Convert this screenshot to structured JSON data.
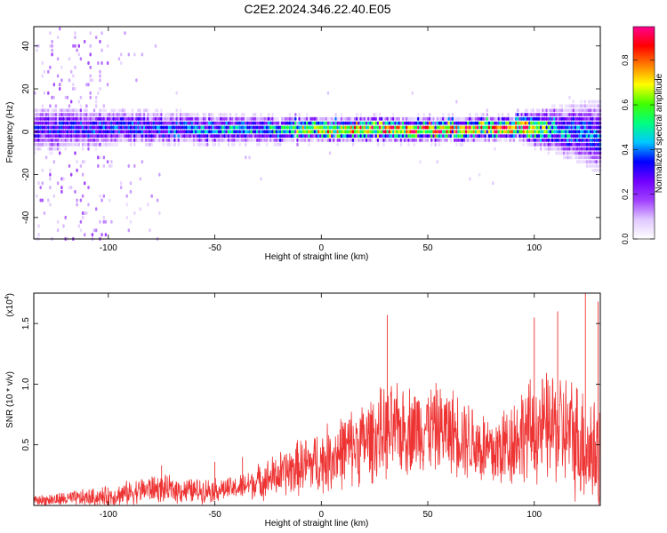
{
  "title": "C2E2.2024.346.22.40.E05",
  "chart_data": [
    {
      "type": "heatmap",
      "title": "C2E2.2024.346.22.40.E05",
      "xlabel": "Height of straight line (km)",
      "ylabel": "Frequency (Hz)",
      "xlim": [
        -135,
        131
      ],
      "ylim": [
        -50,
        49
      ],
      "x_ticks": [
        -100,
        -50,
        0,
        50,
        100
      ],
      "y_ticks": [
        -40,
        -20,
        0,
        20,
        40
      ],
      "colorbar": {
        "label": "Normalized spectral amplitude",
        "range": [
          0.0,
          0.95
        ],
        "ticks": [
          "0.0",
          "0.2",
          "0.4",
          "0.6",
          "0.8"
        ],
        "colors": [
          "#ffffff",
          "#e0c8ff",
          "#a040ff",
          "#7000ff",
          "#0000ff",
          "#00c8ff",
          "#00ff80",
          "#40ff00",
          "#ffff00",
          "#ff8000",
          "#ff0000",
          "#ff0090"
        ]
      },
      "band_center_hz": [
        {
          "x": -135,
          "y": 1
        },
        {
          "x": -100,
          "y": 2
        },
        {
          "x": -50,
          "y": 1
        },
        {
          "x": 0,
          "y": 1
        },
        {
          "x": 50,
          "y": 1
        },
        {
          "x": 100,
          "y": 2
        },
        {
          "x": 131,
          "y": -2
        }
      ],
      "band_halfwidth_hz": [
        {
          "x": -135,
          "y": 8
        },
        {
          "x": -90,
          "y": 6
        },
        {
          "x": -40,
          "y": 5
        },
        {
          "x": 0,
          "y": 4
        },
        {
          "x": 90,
          "y": 4
        },
        {
          "x": 110,
          "y": 8
        },
        {
          "x": 131,
          "y": 13
        }
      ],
      "peak_amplitude": [
        {
          "x": -135,
          "y": 0.35
        },
        {
          "x": -80,
          "y": 0.4
        },
        {
          "x": -20,
          "y": 0.55
        },
        {
          "x": 0,
          "y": 0.85
        },
        {
          "x": 50,
          "y": 0.9
        },
        {
          "x": 95,
          "y": 0.9
        },
        {
          "x": 110,
          "y": 0.5
        },
        {
          "x": 131,
          "y": 0.4
        }
      ]
    },
    {
      "type": "line",
      "xlabel": "Height of straight line (km)",
      "ylabel": "SNR (10 * v/v)",
      "y_multiplier": "(x10",
      "y_multiplier_exp": "4",
      "xlim": [
        -135,
        131
      ],
      "ylim": [
        0,
        17500
      ],
      "x_ticks": [
        -100,
        -50,
        0,
        50,
        100
      ],
      "y_ticks": [
        {
          "value": 5000,
          "label": "0.5"
        },
        {
          "value": 10000,
          "label": "1.0"
        },
        {
          "value": 15000,
          "label": "1.5"
        }
      ],
      "color": "#ee3333",
      "series": [
        {
          "envelope_mean": [
            {
              "x": -135,
              "y": 400
            },
            {
              "x": -100,
              "y": 700
            },
            {
              "x": -80,
              "y": 1400
            },
            {
              "x": -60,
              "y": 1200
            },
            {
              "x": -40,
              "y": 1400
            },
            {
              "x": -20,
              "y": 2500
            },
            {
              "x": -10,
              "y": 3200
            },
            {
              "x": 0,
              "y": 3600
            },
            {
              "x": 10,
              "y": 4500
            },
            {
              "x": 30,
              "y": 6000
            },
            {
              "x": 50,
              "y": 6500
            },
            {
              "x": 65,
              "y": 6000
            },
            {
              "x": 80,
              "y": 4200
            },
            {
              "x": 95,
              "y": 6000
            },
            {
              "x": 110,
              "y": 6500
            },
            {
              "x": 120,
              "y": 5500
            },
            {
              "x": 131,
              "y": 4000
            }
          ],
          "envelope_amplitude": [
            {
              "x": -135,
              "y": 400
            },
            {
              "x": -80,
              "y": 1100
            },
            {
              "x": -40,
              "y": 900
            },
            {
              "x": -20,
              "y": 1800
            },
            {
              "x": 0,
              "y": 2600
            },
            {
              "x": 30,
              "y": 3600
            },
            {
              "x": 80,
              "y": 3200
            },
            {
              "x": 110,
              "y": 4500
            },
            {
              "x": 131,
              "y": 5000
            }
          ],
          "peaks": [
            {
              "x": -75,
              "y": 3300
            },
            {
              "x": -50,
              "y": 3600
            },
            {
              "x": -37,
              "y": 4000
            },
            {
              "x": 31,
              "y": 15700
            },
            {
              "x": 100,
              "y": 15500
            },
            {
              "x": 111,
              "y": 16000
            },
            {
              "x": 124,
              "y": 17500
            },
            {
              "x": 130,
              "y": 16800
            }
          ]
        }
      ]
    }
  ]
}
